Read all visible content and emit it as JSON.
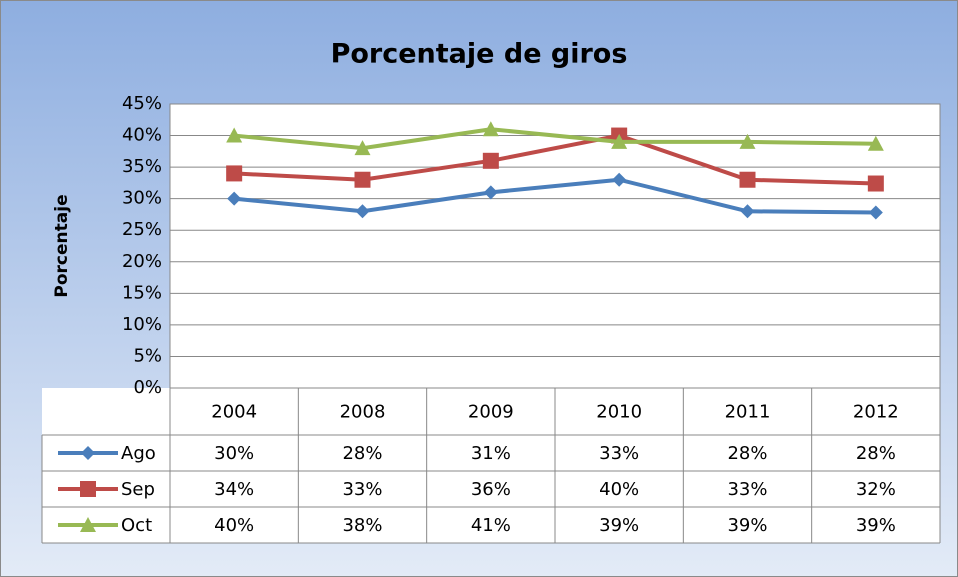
{
  "chart_data": {
    "type": "line",
    "title": "Porcentaje de giros",
    "y_label": "Porcentaje",
    "categories": [
      "2004",
      "2008",
      "2009",
      "2010",
      "2011",
      "2012"
    ],
    "series": [
      {
        "name": "Ago",
        "color": "#4a7ebb",
        "marker": "diamond",
        "values": [
          30,
          28,
          31,
          33,
          28,
          27.8
        ],
        "value_labels": [
          "30%",
          "28%",
          "31%",
          "33%",
          "28%",
          "28%"
        ]
      },
      {
        "name": "Sep",
        "color": "#be4b48",
        "marker": "square",
        "values": [
          34,
          33,
          36,
          40,
          33,
          32.4
        ],
        "value_labels": [
          "34%",
          "33%",
          "36%",
          "40%",
          "33%",
          "32%"
        ]
      },
      {
        "name": "Oct",
        "color": "#98b954",
        "marker": "triangle",
        "values": [
          40,
          38,
          41,
          39,
          39,
          38.7
        ],
        "value_labels": [
          "40%",
          "38%",
          "41%",
          "39%",
          "39%",
          "39%"
        ]
      }
    ],
    "ylim": [
      0,
      45
    ],
    "yticks": [
      {
        "value": 0,
        "label": "0%"
      },
      {
        "value": 5,
        "label": "5%"
      },
      {
        "value": 10,
        "label": "10%"
      },
      {
        "value": 15,
        "label": "15%"
      },
      {
        "value": 20,
        "label": "20%"
      },
      {
        "value": 25,
        "label": "25%"
      },
      {
        "value": 30,
        "label": "30%"
      },
      {
        "value": 35,
        "label": "35%"
      },
      {
        "value": 40,
        "label": "40%"
      },
      {
        "value": 45,
        "label": "45%"
      }
    ],
    "grid": true
  }
}
